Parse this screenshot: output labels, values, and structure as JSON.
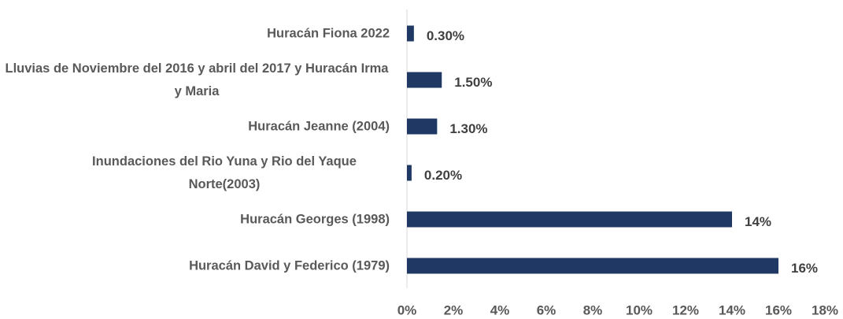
{
  "chart_data": {
    "type": "bar",
    "orientation": "horizontal",
    "categories": [
      "Huracán Fiona 2022",
      "Lluvias de Noviembre del 2016 y abril del 2017 y Huracán Irma y Maria",
      "Huracán Jeanne (2004)",
      "Inundaciones del Rio Yuna y Rio del Yaque Norte(2003)",
      "Huracán Georges (1998)",
      "Huracán David y Federico (1979)"
    ],
    "values": [
      0.3,
      1.5,
      1.3,
      0.2,
      14,
      16
    ],
    "value_labels": [
      "0.30%",
      "1.50%",
      "1.30%",
      "0.20%",
      "14%",
      "16%"
    ],
    "color": "#1f3864",
    "xlim": [
      0,
      18
    ],
    "xticks": [
      {
        "value": 0,
        "label": "0%"
      },
      {
        "value": 2,
        "label": "2%"
      },
      {
        "value": 4,
        "label": "4%"
      },
      {
        "value": 6,
        "label": "6%"
      },
      {
        "value": 8,
        "label": "8%"
      },
      {
        "value": 10,
        "label": "10%"
      },
      {
        "value": 12,
        "label": "12%"
      },
      {
        "value": 14,
        "label": "14%"
      },
      {
        "value": 16,
        "label": "16%"
      },
      {
        "value": 18,
        "label": "18%"
      }
    ],
    "grid": false
  }
}
